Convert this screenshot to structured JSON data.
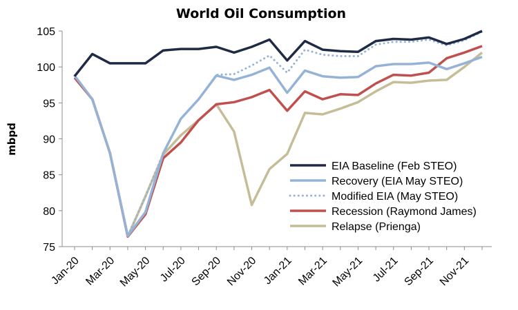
{
  "chart_data": {
    "type": "line",
    "title": "World Oil Consumption",
    "xlabel": "",
    "ylabel": "mbpd",
    "ylim": [
      75,
      105
    ],
    "yticks": [
      75,
      80,
      85,
      90,
      95,
      100,
      105
    ],
    "x": [
      "Jan-20",
      "Feb-20",
      "Mar-20",
      "Apr-20",
      "May-20",
      "Jun-20",
      "Jul-20",
      "Aug-20",
      "Sep-20",
      "Oct-20",
      "Nov-20",
      "Dec-20",
      "Jan-21",
      "Feb-21",
      "Mar-21",
      "Apr-21",
      "May-21",
      "Jun-21",
      "Jul-21",
      "Aug-21",
      "Sep-21",
      "Oct-21",
      "Nov-21",
      "Dec-21"
    ],
    "xtick_labels": [
      "Jan-20",
      "Mar-20",
      "May-20",
      "Jul-20",
      "Sep-20",
      "Nov-20",
      "Jan-21",
      "Mar-21",
      "May-21",
      "Jul-21",
      "Sep-21",
      "Nov-21"
    ],
    "grid": false,
    "legend_position": "right",
    "series": [
      {
        "name": "EIA Baseline (Feb STEO)",
        "color": "#1f2a44",
        "style": "solid",
        "values": [
          98.7,
          101.8,
          100.5,
          100.5,
          100.5,
          102.3,
          102.5,
          102.5,
          102.8,
          102.0,
          102.8,
          103.8,
          100.9,
          103.6,
          102.4,
          102.2,
          102.1,
          103.6,
          103.9,
          103.8,
          104.1,
          103.2,
          103.9,
          105.0
        ]
      },
      {
        "name": "Recovery (EIA May STEO)",
        "color": "#95b3d7",
        "style": "solid",
        "values": [
          98.8,
          95.5,
          88.0,
          76.5,
          79.8,
          88.0,
          92.8,
          95.5,
          98.8,
          98.2,
          98.9,
          99.9,
          96.4,
          99.5,
          98.7,
          98.5,
          98.6,
          100.1,
          100.4,
          100.4,
          100.6,
          99.7,
          100.5,
          101.4
        ]
      },
      {
        "name": "Modified EIA (May STEO)",
        "color": "#95b3d7",
        "style": "dotted",
        "values": [
          98.8,
          95.5,
          88.0,
          76.5,
          82.0,
          88.0,
          92.8,
          95.5,
          98.9,
          99.0,
          100.2,
          101.6,
          99.2,
          102.4,
          101.7,
          101.5,
          101.5,
          103.1,
          103.5,
          103.5,
          103.8,
          103.0,
          103.7,
          104.9
        ]
      },
      {
        "name": "Recession (Raymond James)",
        "color": "#c0504d",
        "style": "solid",
        "values": [
          98.5,
          95.5,
          88.0,
          76.4,
          79.5,
          87.3,
          89.5,
          92.6,
          94.8,
          95.1,
          95.8,
          96.8,
          93.9,
          96.6,
          95.5,
          96.2,
          96.1,
          97.7,
          98.9,
          98.8,
          99.2,
          101.2,
          102.0,
          102.9
        ]
      },
      {
        "name": "Relapse (Prienga)",
        "color": "#c4bd97",
        "style": "solid",
        "values": [
          98.5,
          95.5,
          88.0,
          76.4,
          82.0,
          87.8,
          90.5,
          92.6,
          94.8,
          91.0,
          80.8,
          85.8,
          87.9,
          93.6,
          93.4,
          94.2,
          95.1,
          96.6,
          97.9,
          97.8,
          98.1,
          98.2,
          100.0,
          102.0
        ]
      }
    ]
  }
}
